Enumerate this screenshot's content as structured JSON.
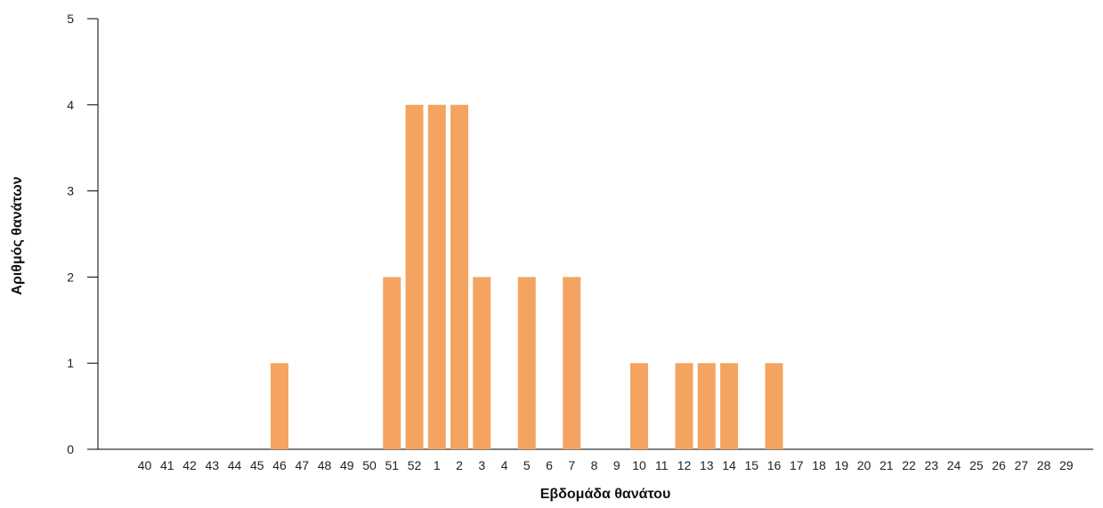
{
  "chart_data": {
    "type": "bar",
    "title": "",
    "xlabel": "Εβδομάδα θανάτου",
    "ylabel": "Αριθμός θανάτων",
    "ylim": [
      0,
      5
    ],
    "yticks": [
      0,
      1,
      2,
      3,
      4,
      5
    ],
    "grid": false,
    "bar_color": "#F4A460",
    "categories": [
      "40",
      "41",
      "42",
      "43",
      "44",
      "45",
      "46",
      "47",
      "48",
      "49",
      "50",
      "51",
      "52",
      "1",
      "2",
      "3",
      "4",
      "5",
      "6",
      "7",
      "8",
      "9",
      "10",
      "11",
      "12",
      "13",
      "14",
      "15",
      "16",
      "17",
      "18",
      "19",
      "20",
      "21",
      "22",
      "23",
      "24",
      "25",
      "26",
      "27",
      "28",
      "29"
    ],
    "values": [
      0,
      0,
      0,
      0,
      0,
      0,
      1,
      0,
      0,
      0,
      0,
      2,
      4,
      4,
      4,
      2,
      0,
      2,
      0,
      2,
      0,
      0,
      1,
      0,
      1,
      1,
      1,
      0,
      1,
      0,
      0,
      0,
      0,
      0,
      0,
      0,
      0,
      0,
      0,
      0,
      0,
      0
    ]
  }
}
